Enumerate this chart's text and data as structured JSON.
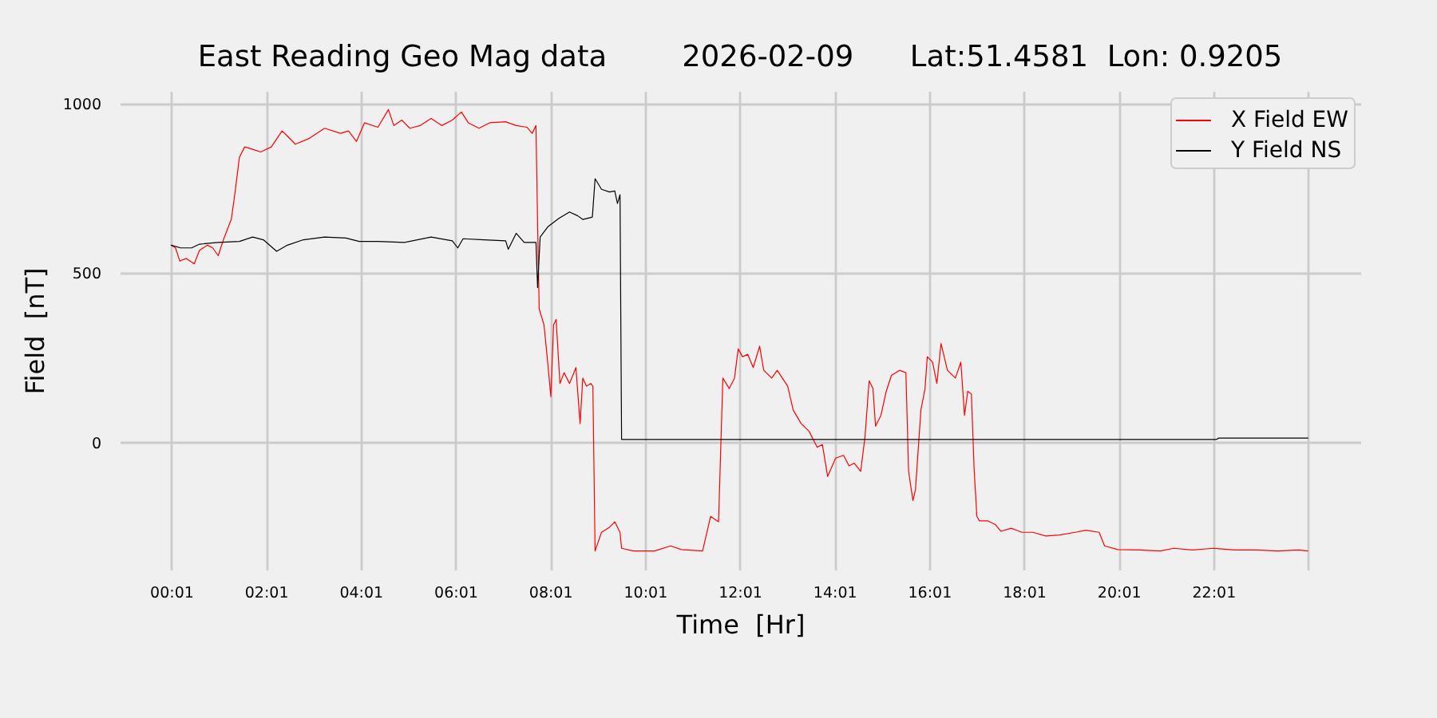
{
  "chart_data": {
    "type": "line",
    "title": "East Reading Geo Mag data        2026-02-09      Lat:51.4581  Lon: 0.9205",
    "xlabel": "Time  [Hr]",
    "ylabel": "Field  [nT]",
    "xlim": [
      -1.07,
      25.12
    ],
    "ylim": [
      -375,
      1037
    ],
    "xticks": [
      {
        "value": 0.0167,
        "label": "00:01"
      },
      {
        "value": 2.0167,
        "label": "02:01"
      },
      {
        "value": 4.0167,
        "label": "04:01"
      },
      {
        "value": 6.0167,
        "label": "06:01"
      },
      {
        "value": 8.0167,
        "label": "08:01"
      },
      {
        "value": 10.0167,
        "label": "10:01"
      },
      {
        "value": 12.0167,
        "label": "12:01"
      },
      {
        "value": 14.0167,
        "label": "14:01"
      },
      {
        "value": 16.0167,
        "label": "16:01"
      },
      {
        "value": 18.0167,
        "label": "18:01"
      },
      {
        "value": 20.0167,
        "label": "20:01"
      },
      {
        "value": 22.0167,
        "label": "22:01"
      },
      {
        "value": 24.0167,
        "label": null
      }
    ],
    "yticks": [
      0,
      500,
      1000
    ],
    "grid": true,
    "legend": "top right",
    "series": [
      {
        "name": "X Field EW",
        "color": "#ff0000",
        "x": [
          0.017,
          0.107,
          0.199,
          0.334,
          0.502,
          0.614,
          0.782,
          0.893,
          1.008,
          1.119,
          1.288,
          1.365,
          1.456,
          1.568,
          1.736,
          1.905,
          2.131,
          2.357,
          2.468,
          2.637,
          2.916,
          3.254,
          3.591,
          3.759,
          3.928,
          4.096,
          4.38,
          4.602,
          4.717,
          4.885,
          5.054,
          5.276,
          5.502,
          5.728,
          5.951,
          6.143,
          6.288,
          6.514,
          6.74,
          7.077,
          7.299,
          7.525,
          7.637,
          7.717,
          7.751,
          7.785,
          7.886,
          7.953,
          8.031,
          8.088,
          8.142,
          8.223,
          8.311,
          8.425,
          8.56,
          8.648,
          8.705,
          8.783,
          8.874,
          8.918,
          8.965,
          9.1,
          9.268,
          9.38,
          9.491,
          9.524,
          9.774,
          10.222,
          10.56,
          10.785,
          11.234,
          11.403,
          11.571,
          11.662,
          11.797,
          11.908,
          11.986,
          12.077,
          12.188,
          12.303,
          12.438,
          12.525,
          12.694,
          12.809,
          13.031,
          13.146,
          13.314,
          13.483,
          13.652,
          13.763,
          13.874,
          14.043,
          14.211,
          14.326,
          14.437,
          14.572,
          14.663,
          14.75,
          14.831,
          14.885,
          14.999,
          15.111,
          15.222,
          15.391,
          15.526,
          15.583,
          15.674,
          15.728,
          15.843,
          15.93,
          15.978,
          16.089,
          16.18,
          16.268,
          16.403,
          16.571,
          16.686,
          16.764,
          16.831,
          16.909,
          16.966,
          17.024,
          17.077,
          17.246,
          17.414,
          17.529,
          17.751,
          17.977,
          18.203,
          18.483,
          18.763,
          19.1,
          19.326,
          19.606,
          19.72,
          20.0,
          20.448,
          20.9,
          21.18,
          21.574,
          22.023,
          22.471,
          22.923,
          23.371,
          23.82,
          24.012
        ],
        "values": [
          582,
          574,
          535,
          543,
          527,
          567,
          582,
          574,
          551,
          598,
          660,
          739,
          841,
          872,
          865,
          857,
          872,
          919,
          904,
          880,
          896,
          927,
          912,
          919,
          888,
          943,
          930,
          982,
          935,
          951,
          927,
          935,
          956,
          935,
          951,
          975,
          943,
          927,
          943,
          946,
          935,
          930,
          912,
          935,
          645,
          394,
          347,
          253,
          135,
          347,
          363,
          174,
          206,
          174,
          221,
          56,
          190,
          166,
          174,
          166,
          -320,
          -265,
          -250,
          -234,
          -265,
          -312,
          -320,
          -320,
          -305,
          -316,
          -320,
          -218,
          -234,
          190,
          159,
          190,
          276,
          253,
          260,
          221,
          284,
          213,
          190,
          213,
          166,
          96,
          56,
          33,
          -14,
          -6,
          -100,
          -46,
          -38,
          -69,
          -61,
          -85,
          17,
          182,
          159,
          48,
          80,
          151,
          198,
          213,
          206,
          -85,
          -171,
          -140,
          96,
          159,
          253,
          237,
          174,
          292,
          213,
          190,
          237,
          80,
          151,
          143,
          -77,
          -218,
          -231,
          -231,
          -242,
          -262,
          -253,
          -265,
          -265,
          -276,
          -273,
          -265,
          -259,
          -265,
          -305,
          -316,
          -317,
          -320,
          -312,
          -317,
          -312,
          -317,
          -317,
          -320,
          -317,
          -320
        ]
      },
      {
        "name": "Y Field NS",
        "color": "#000000",
        "x": [
          0.017,
          0.219,
          0.445,
          0.614,
          1.008,
          1.456,
          1.736,
          1.962,
          2.242,
          2.468,
          2.805,
          3.254,
          3.705,
          3.985,
          4.38,
          4.939,
          5.502,
          5.951,
          6.066,
          6.177,
          6.625,
          7.077,
          7.131,
          7.299,
          7.468,
          7.717,
          7.751,
          7.805,
          7.973,
          8.199,
          8.425,
          8.594,
          8.705,
          8.907,
          8.965,
          9.1,
          9.268,
          9.38,
          9.437,
          9.491,
          9.524,
          12.019,
          16.628,
          22.08,
          22.133,
          24.012
        ],
        "values": [
          582,
          574,
          574,
          585,
          590,
          593,
          606,
          598,
          564,
          582,
          598,
          606,
          603,
          593,
          593,
          590,
          606,
          595,
          574,
          601,
          598,
          595,
          570,
          617,
          590,
          590,
          457,
          606,
          637,
          661,
          680,
          669,
          658,
          665,
          778,
          747,
          739,
          742,
          705,
          731,
          9,
          9,
          9,
          9,
          13,
          13
        ]
      }
    ]
  }
}
